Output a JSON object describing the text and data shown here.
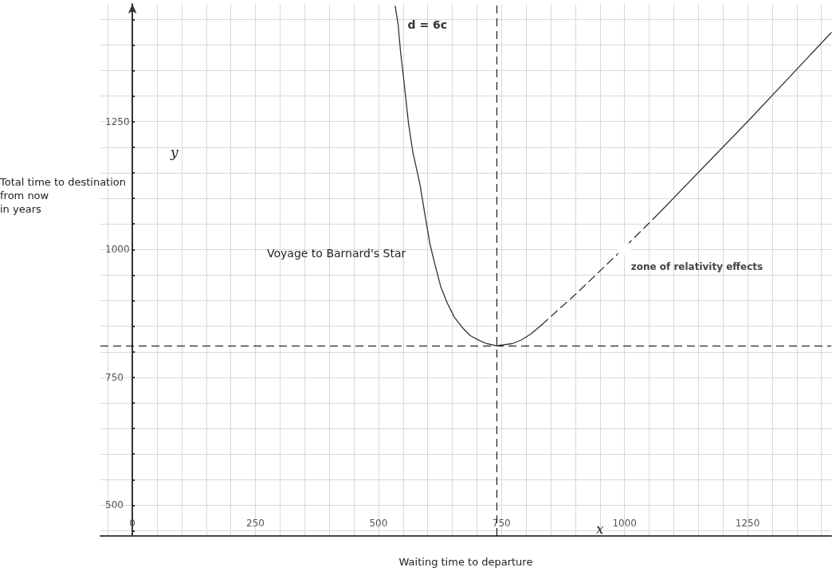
{
  "chart_data": {
    "type": "line",
    "title": "Voyage to Barnard's Star",
    "xlabel": "Waiting time to departure",
    "ylabel": "Total time to destination\nfrom now\nin years",
    "annotations": [
      "x",
      "y",
      {
        "text": "zone of relativity effects",
        "x": 1000,
        "y": 1000
      }
    ],
    "series": [
      {
        "name": "d = 6c",
        "color": "#333333",
        "line_style": "solid",
        "x": [
          534,
          540,
          545,
          551,
          561,
          570,
          584,
          595,
          605,
          615,
          627,
          640,
          654,
          670,
          686,
          705,
          720,
          740,
          772,
          790,
          810,
          832
        ],
        "values": [
          1476,
          1440,
          1385,
          1336,
          1247,
          1190,
          1129,
          1065,
          1009,
          970,
          926,
          895,
          868,
          848,
          832,
          822,
          816,
          812,
          816,
          823,
          835,
          853
        ]
      },
      {
        "color": "#333333",
        "line_style": "dashed",
        "x": [
          832,
          900,
          1000,
          1070
        ],
        "values": [
          853,
          912,
          1004,
          1071
        ]
      },
      {
        "color": "#333333",
        "line_style": "solid",
        "x": [
          1070,
          1250,
          1420
        ],
        "values": [
          1071,
          1250,
          1424
        ]
      }
    ],
    "xlim": [
      -65,
      1420
    ],
    "xticks": [
      {
        "value": -50,
        "label": null
      },
      0,
      {
        "value": 50,
        "label": null
      },
      {
        "value": 100,
        "label": null
      },
      {
        "value": 150,
        "label": null
      },
      {
        "value": 200,
        "label": null
      },
      250,
      {
        "value": 300,
        "label": null
      },
      {
        "value": 350,
        "label": null
      },
      {
        "value": 400,
        "label": null
      },
      {
        "value": 450,
        "label": null
      },
      500,
      {
        "value": 550,
        "label": null
      },
      {
        "value": 600,
        "label": null
      },
      {
        "value": 650,
        "label": null
      },
      {
        "value": 700,
        "label": null
      },
      750,
      {
        "value": 800,
        "label": null
      },
      {
        "value": 850,
        "label": null
      },
      {
        "value": 900,
        "label": null
      },
      {
        "value": 950,
        "label": null
      },
      1000,
      {
        "value": 1050,
        "label": null
      },
      {
        "value": 1100,
        "label": null
      },
      {
        "value": 1150,
        "label": null
      },
      {
        "value": 1200,
        "label": null
      },
      1250,
      {
        "value": 1300,
        "label": null
      },
      {
        "value": 1350,
        "label": null
      },
      {
        "value": 1400,
        "label": null
      }
    ],
    "ylim": [
      440,
      1480
    ],
    "yticks": [
      {
        "value": 450,
        "label": null
      },
      500,
      {
        "value": 550,
        "label": null
      },
      {
        "value": 600,
        "label": null
      },
      {
        "value": 650,
        "label": null
      },
      {
        "value": 700,
        "label": null
      },
      750,
      {
        "value": 800,
        "label": null
      },
      {
        "value": 850,
        "label": null
      },
      {
        "value": 900,
        "label": null
      },
      {
        "value": 950,
        "label": null
      },
      1000,
      {
        "value": 1050,
        "label": null
      },
      {
        "value": 1100,
        "label": null
      },
      {
        "value": 1150,
        "label": null
      },
      {
        "value": 1200,
        "label": null
      },
      1250,
      {
        "value": 1300,
        "label": null
      },
      {
        "value": 1350,
        "label": null
      },
      {
        "value": 1400,
        "label": null
      },
      {
        "value": 1450,
        "label": null
      }
    ],
    "ref_lines": [
      {
        "axis": "x",
        "value": 740,
        "color": "#000000",
        "line_style": "dashed"
      },
      {
        "axis": "y",
        "value": 812,
        "color": "#000000",
        "line_style": "dashed"
      }
    ],
    "grid": true,
    "legend": false,
    "marker": "none"
  }
}
